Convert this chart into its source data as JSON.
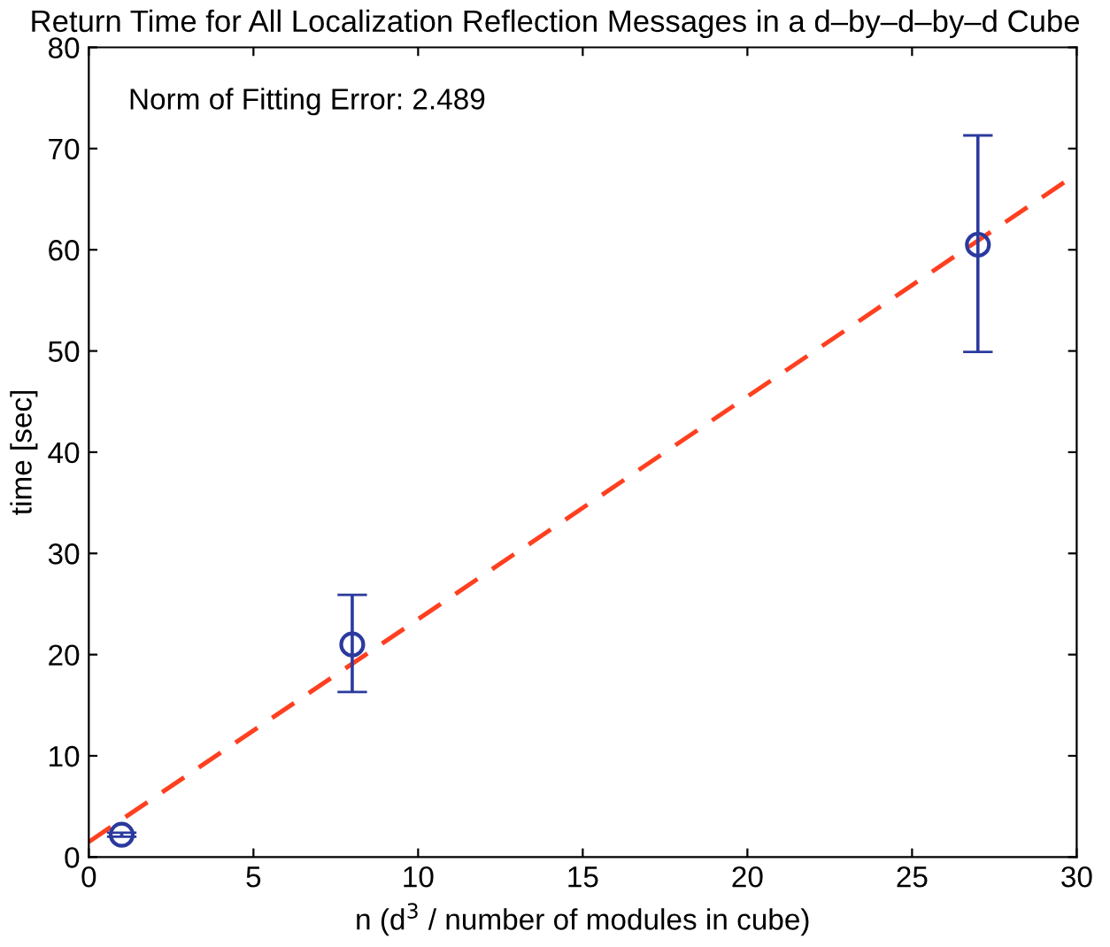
{
  "chart_data": {
    "type": "scatter",
    "title": "Return Time for All Localization Reflection Messages in a d–by–d–by–d Cube",
    "xlabel": "n (d$^{3}$ / number of modules in cube)",
    "ylabel": "time [sec]",
    "annotations": [
      "Norm of Fitting Error: 2.489"
    ],
    "xlim": [
      0,
      30
    ],
    "ylim": [
      0,
      80
    ],
    "xticks": [
      0,
      5,
      10,
      15,
      20,
      25,
      30
    ],
    "yticks": [
      0,
      10,
      20,
      30,
      40,
      50,
      60,
      70,
      80
    ],
    "grid": false,
    "series": [
      {
        "color": "#2b3a9e",
        "marker": "circle",
        "x": [
          1,
          8,
          27
        ],
        "values": [
          2.2,
          21,
          60.5
        ],
        "errors": [
          [
            2.0,
            2.4
          ],
          [
            16.3,
            25.9
          ],
          [
            49.9,
            71.3
          ]
        ]
      },
      {
        "type": "line",
        "color": "#ff4020",
        "line_style": "dashed",
        "marker": "none",
        "x": [
          0,
          30
        ],
        "values": [
          1.5,
          67.5
        ]
      }
    ]
  }
}
